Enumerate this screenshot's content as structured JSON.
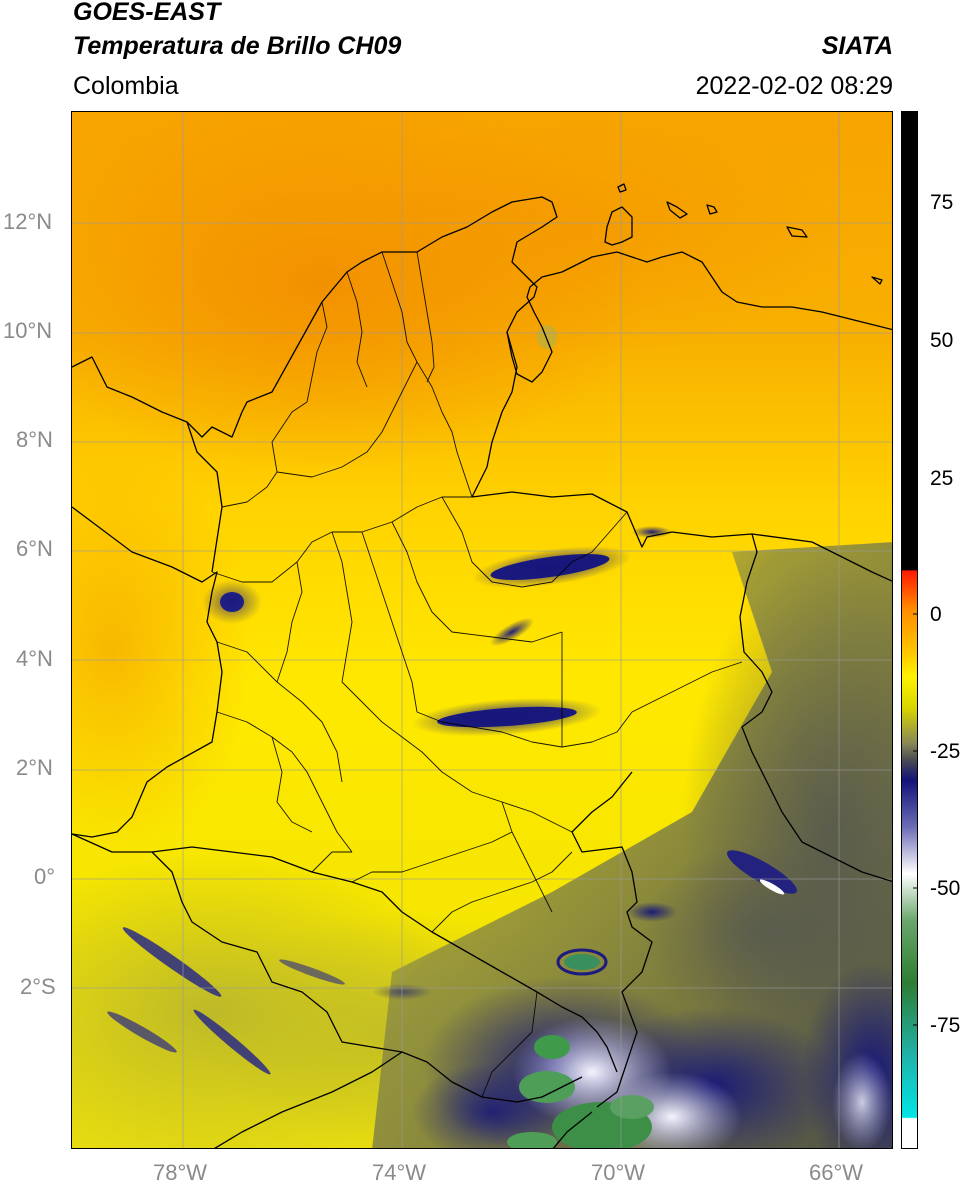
{
  "header": {
    "satellite": "GOES-EAST",
    "product": "Temperatura de Brillo CH09",
    "region": "Colombia",
    "source": "SIATA",
    "datetime": "2022-02-02 08:29"
  },
  "axes": {
    "lat_labels": [
      "12°N",
      "10°N",
      "8°N",
      "6°N",
      "4°N",
      "2°N",
      "0°",
      "2°S"
    ],
    "lon_labels": [
      "78°W",
      "74°W",
      "70°W",
      "66°W"
    ]
  },
  "colorbar": {
    "labels": [
      "75",
      "50",
      "25",
      "0",
      "-25",
      "-50",
      "-75"
    ],
    "stops": [
      {
        "value": 90,
        "color": "#000000"
      },
      {
        "value": 8,
        "color": "#000000"
      },
      {
        "value": 7.9,
        "color": "#ff1a00"
      },
      {
        "value": -2,
        "color": "#ff9a00"
      },
      {
        "value": -8,
        "color": "#ffc800"
      },
      {
        "value": -14,
        "color": "#ffee00"
      },
      {
        "value": -19,
        "color": "#d8d400"
      },
      {
        "value": -23,
        "color": "#6b6b58"
      },
      {
        "value": -27,
        "color": "#15157a"
      },
      {
        "value": -38,
        "color": "#8a8ac0"
      },
      {
        "value": -48,
        "color": "#ffffff"
      },
      {
        "value": -58,
        "color": "#4e9a4e"
      },
      {
        "value": -70,
        "color": "#2e7d32"
      },
      {
        "value": -80,
        "color": "#20b2aa"
      },
      {
        "value": -88,
        "color": "#00e5e5"
      },
      {
        "value": -90,
        "color": "#ffffff"
      }
    ]
  },
  "colors": {
    "orange": "#f7a800",
    "yellow": "#ffe400",
    "olive": "#c6c32a",
    "gray": "#5d5f57",
    "navy": "#1a1a80",
    "green": "#3f9a4a"
  }
}
